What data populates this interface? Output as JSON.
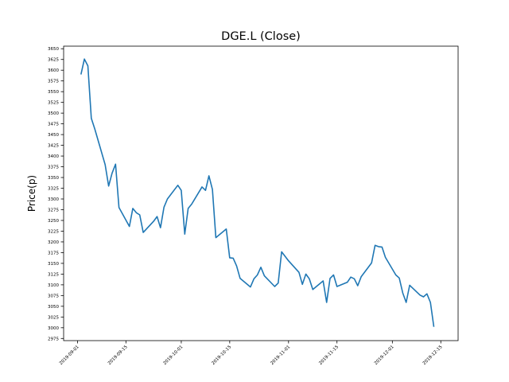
{
  "chart_data": {
    "type": "line",
    "title": "DGE.L (Close)",
    "xlabel": "",
    "ylabel": "Price(p)",
    "xlim": [
      "2019-08-28",
      "2019-12-20"
    ],
    "ylim": [
      2970,
      3656
    ],
    "grid": false,
    "line_color": "#1f77b4",
    "x_ticks": [
      "2019-09-01",
      "2019-09-15",
      "2019-10-01",
      "2019-10-15",
      "2019-11-01",
      "2019-11-15",
      "2019-12-01",
      "2019-12-15"
    ],
    "y_ticks": [
      2975,
      3000,
      3025,
      3050,
      3075,
      3100,
      3125,
      3150,
      3175,
      3200,
      3225,
      3250,
      3275,
      3300,
      3325,
      3350,
      3375,
      3400,
      3425,
      3450,
      3475,
      3500,
      3525,
      3550,
      3575,
      3600,
      3625,
      3650
    ],
    "series": [
      {
        "name": "Close",
        "x": [
          "2019-09-02",
          "2019-09-03",
          "2019-09-04",
          "2019-09-05",
          "2019-09-06",
          "2019-09-09",
          "2019-09-10",
          "2019-09-11",
          "2019-09-12",
          "2019-09-13",
          "2019-09-16",
          "2019-09-17",
          "2019-09-18",
          "2019-09-19",
          "2019-09-20",
          "2019-09-23",
          "2019-09-24",
          "2019-09-25",
          "2019-09-26",
          "2019-09-27",
          "2019-09-30",
          "2019-10-01",
          "2019-10-02",
          "2019-10-03",
          "2019-10-04",
          "2019-10-07",
          "2019-10-08",
          "2019-10-09",
          "2019-10-10",
          "2019-10-11",
          "2019-10-14",
          "2019-10-15",
          "2019-10-16",
          "2019-10-17",
          "2019-10-18",
          "2019-10-21",
          "2019-10-22",
          "2019-10-23",
          "2019-10-24",
          "2019-10-25",
          "2019-10-28",
          "2019-10-29",
          "2019-10-30",
          "2019-11-01",
          "2019-11-04",
          "2019-11-05",
          "2019-11-06",
          "2019-11-07",
          "2019-11-08",
          "2019-11-11",
          "2019-11-12",
          "2019-11-13",
          "2019-11-14",
          "2019-11-15",
          "2019-11-18",
          "2019-11-19",
          "2019-11-20",
          "2019-11-21",
          "2019-11-22",
          "2019-11-25",
          "2019-11-26",
          "2019-11-27",
          "2019-11-28",
          "2019-11-29",
          "2019-12-02",
          "2019-12-03",
          "2019-12-04",
          "2019-12-05",
          "2019-12-06",
          "2019-12-09",
          "2019-12-10",
          "2019-12-11",
          "2019-12-12",
          "2019-12-13"
        ],
        "values": [
          3590,
          3626,
          3610,
          3488,
          3463,
          3380,
          3330,
          3360,
          3381,
          3280,
          3236,
          3278,
          3268,
          3263,
          3222,
          3248,
          3259,
          3233,
          3281,
          3300,
          3332,
          3320,
          3218,
          3278,
          3288,
          3328,
          3320,
          3354,
          3322,
          3210,
          3230,
          3163,
          3162,
          3144,
          3115,
          3095,
          3114,
          3123,
          3141,
          3121,
          3096,
          3104,
          3177,
          3156,
          3129,
          3101,
          3125,
          3114,
          3089,
          3109,
          3059,
          3115,
          3123,
          3096,
          3106,
          3118,
          3114,
          3098,
          3119,
          3151,
          3192,
          3189,
          3188,
          3164,
          3123,
          3116,
          3081,
          3059,
          3099,
          3076,
          3072,
          3079,
          3059,
          3002
        ]
      }
    ]
  }
}
